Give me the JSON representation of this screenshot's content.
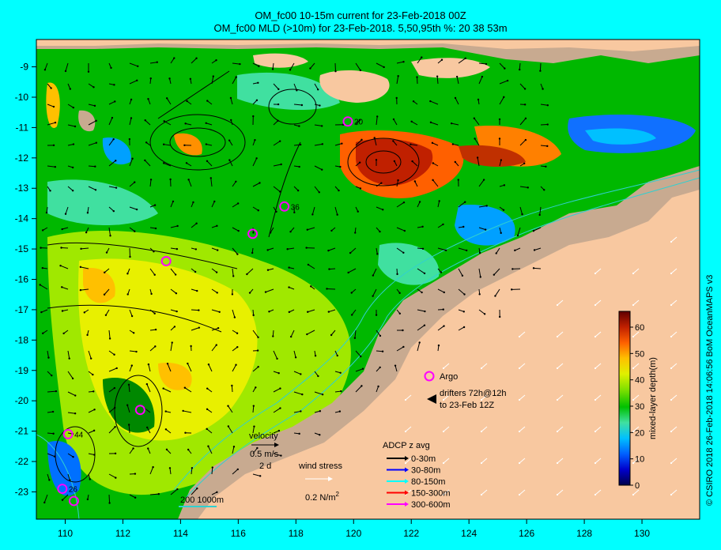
{
  "title": {
    "line1": "OM_fc00 10-15m current for 23-Feb-2018 00Z",
    "line2": "OM_fc00 MLD (>10m) for 23-Feb-2018. 5,50,95th %: 20  38  53m"
  },
  "axes": {
    "lon_ticks": [
      110,
      112,
      114,
      116,
      118,
      120,
      122,
      124,
      126,
      128,
      130
    ],
    "lat_ticks": [
      -9,
      -10,
      -11,
      -12,
      -13,
      -14,
      -15,
      -16,
      -17,
      -18,
      -19,
      -20,
      -21,
      -22,
      -23
    ],
    "lon_range": [
      109,
      132
    ],
    "lat_range": [
      -23.9,
      -8.1
    ]
  },
  "colorbar": {
    "label": "mixed-layer depth(m)",
    "ticks": [
      0,
      10,
      20,
      30,
      40,
      50,
      60
    ],
    "range": [
      0,
      66
    ],
    "colors": [
      "#00004a",
      "#0000cc",
      "#0060ff",
      "#00c0ff",
      "#40e0a0",
      "#00c000",
      "#80e000",
      "#e0f000",
      "#ffc000",
      "#ff6000",
      "#c02000",
      "#600000"
    ]
  },
  "legend": {
    "argo_label": "Argo",
    "drifters_line1": "drifters 72h@12h",
    "drifters_line2": "to 23-Feb 12Z",
    "velocity_label": "velocity",
    "velocity_scale": "0.5 m/s",
    "velocity_time": "2 d",
    "wind_label": "wind stress",
    "wind_scale": "0.2 N/m",
    "wind_sup": "2",
    "isobath_label": "200  1000m",
    "adcp_title": "ADCP z avg",
    "adcp": [
      {
        "label": "0-30m",
        "color": "#000000"
      },
      {
        "label": "30-80m",
        "color": "#0000ff"
      },
      {
        "label": "80-150m",
        "color": "#00ffff"
      },
      {
        "label": "150-300m",
        "color": "#ff0000"
      },
      {
        "label": "300-600m",
        "color": "#ff00ff"
      }
    ]
  },
  "argo_floats": [
    {
      "lon": 119.8,
      "lat": -10.8,
      "label": "20"
    },
    {
      "lon": 117.6,
      "lat": -13.6,
      "label": "36"
    },
    {
      "lon": 116.5,
      "lat": -14.5,
      "label": ""
    },
    {
      "lon": 113.5,
      "lat": -15.4,
      "label": ""
    },
    {
      "lon": 112.6,
      "lat": -20.3,
      "label": ""
    },
    {
      "lon": 110.1,
      "lat": -21.1,
      "label": "44"
    },
    {
      "lon": 109.9,
      "lat": -22.9,
      "label": "26"
    },
    {
      "lon": 110.3,
      "lat": -23.3,
      "label": ""
    }
  ],
  "credit": "© CSIRO 2018  26-Feb-2018 14:06:56 BoM OceanMAPS v3",
  "colors": {
    "land": "#f8c8a0",
    "shelf": "#c8aa90",
    "frame": "#00ffff"
  }
}
